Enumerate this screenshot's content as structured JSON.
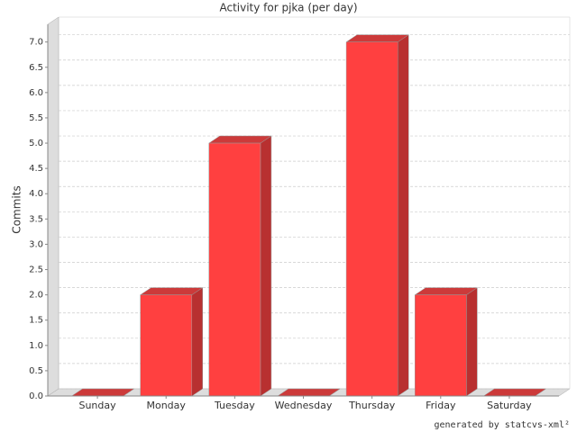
{
  "chart_data": {
    "type": "bar3d",
    "title": "Activity for pjka (per day)",
    "y_label": "Commits",
    "categories": [
      "Sunday",
      "Monday",
      "Tuesday",
      "Wednesday",
      "Thursday",
      "Friday",
      "Saturday"
    ],
    "values": [
      0,
      2,
      5,
      0,
      7,
      2,
      0
    ],
    "color": "#ff4040",
    "ylim": [
      0,
      7.35
    ],
    "yticks": [
      {
        "value": 0,
        "label": "0.0"
      },
      {
        "value": 0.5,
        "label": "0.5"
      },
      {
        "value": 1,
        "label": "1.0"
      },
      {
        "value": 1.5,
        "label": "1.5"
      },
      {
        "value": 2,
        "label": "2.0"
      },
      {
        "value": 2.5,
        "label": "2.5"
      },
      {
        "value": 3,
        "label": "3.0"
      },
      {
        "value": 3.5,
        "label": "3.5"
      },
      {
        "value": 4,
        "label": "4.0"
      },
      {
        "value": 4.5,
        "label": "4.5"
      },
      {
        "value": 5,
        "label": "5.0"
      },
      {
        "value": 5.5,
        "label": "5.5"
      },
      {
        "value": 6,
        "label": "6.0"
      },
      {
        "value": 6.5,
        "label": "6.5"
      },
      {
        "value": 7,
        "label": "7.0"
      }
    ],
    "grid": true,
    "footer": "generated by statcvs-xml²"
  }
}
